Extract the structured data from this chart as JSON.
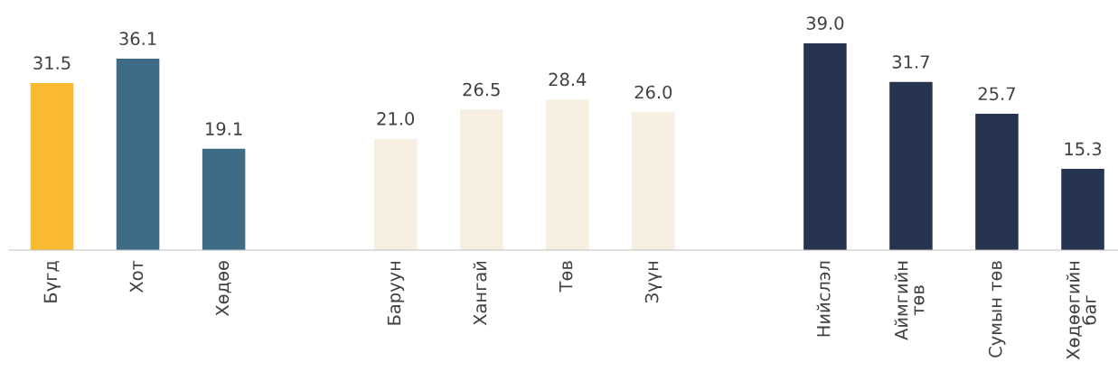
{
  "chart_data": {
    "type": "bar",
    "categories": [
      "Бүгд",
      "Хот",
      "Хөдөө",
      null,
      "Баруун",
      "Хангай",
      "Төв",
      "Зүүн",
      null,
      "Нийслэл",
      "Аймгийн\nтөв",
      "Сумын төв",
      "Хөдөөгийн\nбаг"
    ],
    "values": [
      31.5,
      36.1,
      19.1,
      null,
      21.0,
      26.5,
      28.4,
      26.0,
      null,
      39.0,
      31.7,
      25.7,
      15.3
    ],
    "colors": [
      "#f9b930",
      "#3e6b85",
      "#3e6b85",
      null,
      "#f6efe2",
      "#f6efe2",
      "#f6efe2",
      "#f6efe2",
      null,
      "#263450",
      "#263450",
      "#263450",
      "#263450"
    ],
    "value_labels": [
      "31.5",
      "36.1",
      "19.1",
      null,
      "21.0",
      "26.5",
      "28.4",
      "26.0",
      null,
      "39.0",
      "31.7",
      "25.7",
      "15.3"
    ],
    "grid": false
  }
}
